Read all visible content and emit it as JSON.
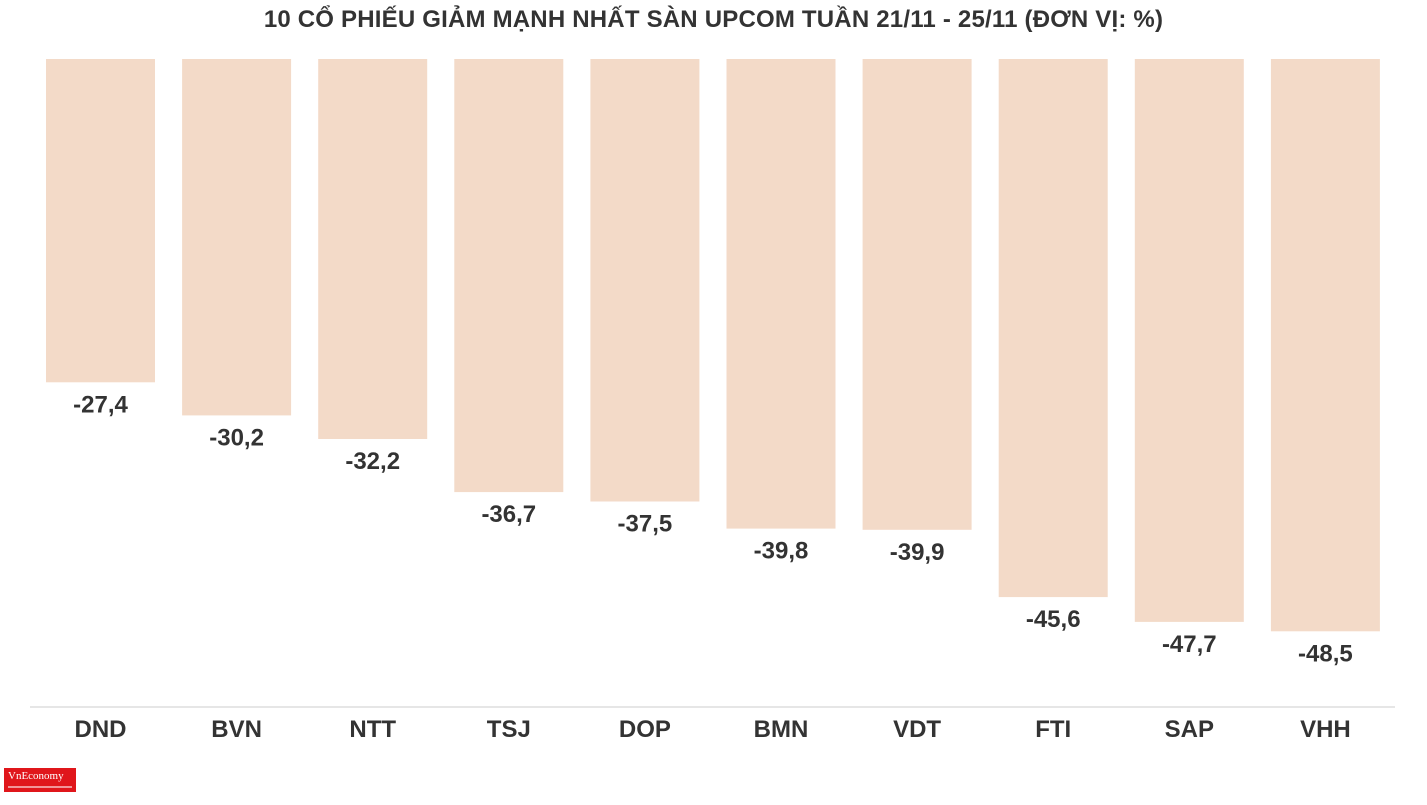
{
  "chart_data": {
    "type": "bar",
    "title": "10 CỔ PHIẾU GIẢM MẠNH NHẤT SÀN UPCOM TUẦN 21/11 - 25/11 (ĐƠN VỊ: %)",
    "categories": [
      "DND",
      "BVN",
      "NTT",
      "TSJ",
      "DOP",
      "BMN",
      "VDT",
      "FTI",
      "SAP",
      "VHH"
    ],
    "values": [
      -27.4,
      -30.2,
      -32.2,
      -36.7,
      -37.5,
      -39.8,
      -39.9,
      -45.6,
      -47.7,
      -48.5
    ],
    "value_labels": [
      "-27,4",
      "-30,2",
      "-32,2",
      "-36,7",
      "-37,5",
      "-39,8",
      "-39,9",
      "-45,6",
      "-47,7",
      "-48,5"
    ],
    "xlabel": "",
    "ylabel": "",
    "ylim": [
      -55,
      0
    ],
    "grid": false,
    "legend": "none",
    "bar_color": "#f3dac8",
    "label_color": "#333333",
    "axis_color": "#e6e6e6"
  },
  "branding": {
    "logo_text": "VnEconomy"
  }
}
